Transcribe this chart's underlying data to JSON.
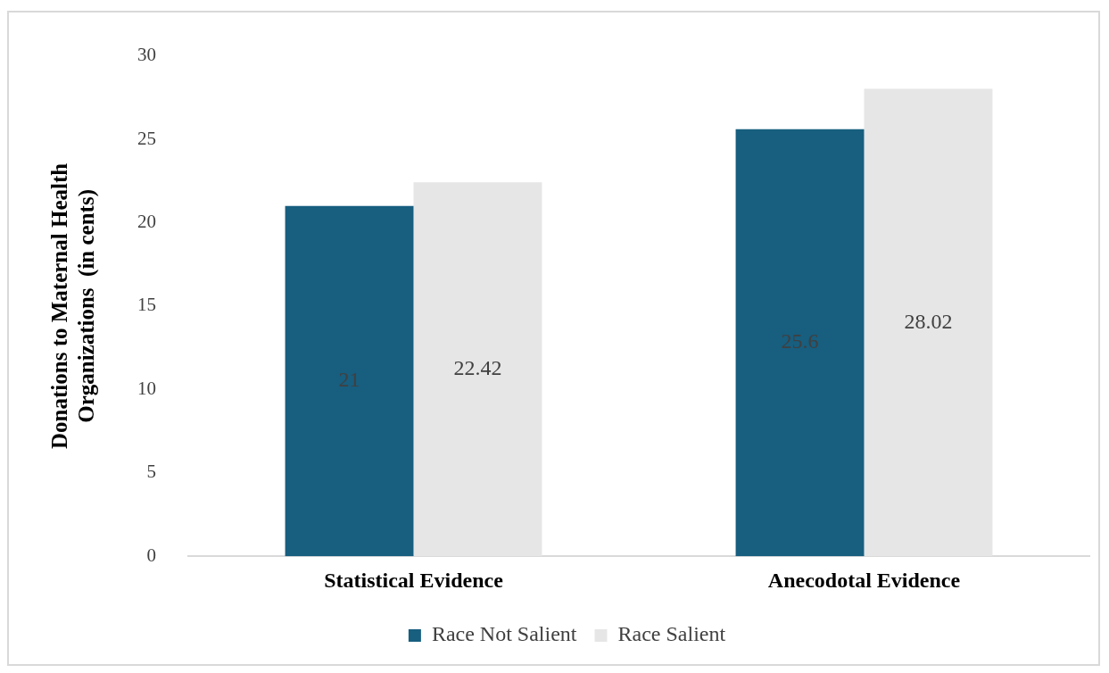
{
  "chart_data": {
    "type": "bar",
    "ylabel": "Donations to Maternal Health\nOrganizations  (in cents)",
    "categories": [
      "Statistical Evidence",
      "Anecodotal Evidence"
    ],
    "series": [
      {
        "name": "Race Not Salient",
        "color": "#175e7f",
        "values": [
          21,
          25.6
        ]
      },
      {
        "name": "Race Salient",
        "color": "#e6e6e6",
        "values": [
          22.42,
          28.02
        ]
      }
    ],
    "ylim": [
      0,
      30
    ],
    "yticks": [
      0,
      5,
      10,
      15,
      20,
      25,
      30
    ],
    "grid": false,
    "legend": "bottom",
    "data_labels": true
  }
}
